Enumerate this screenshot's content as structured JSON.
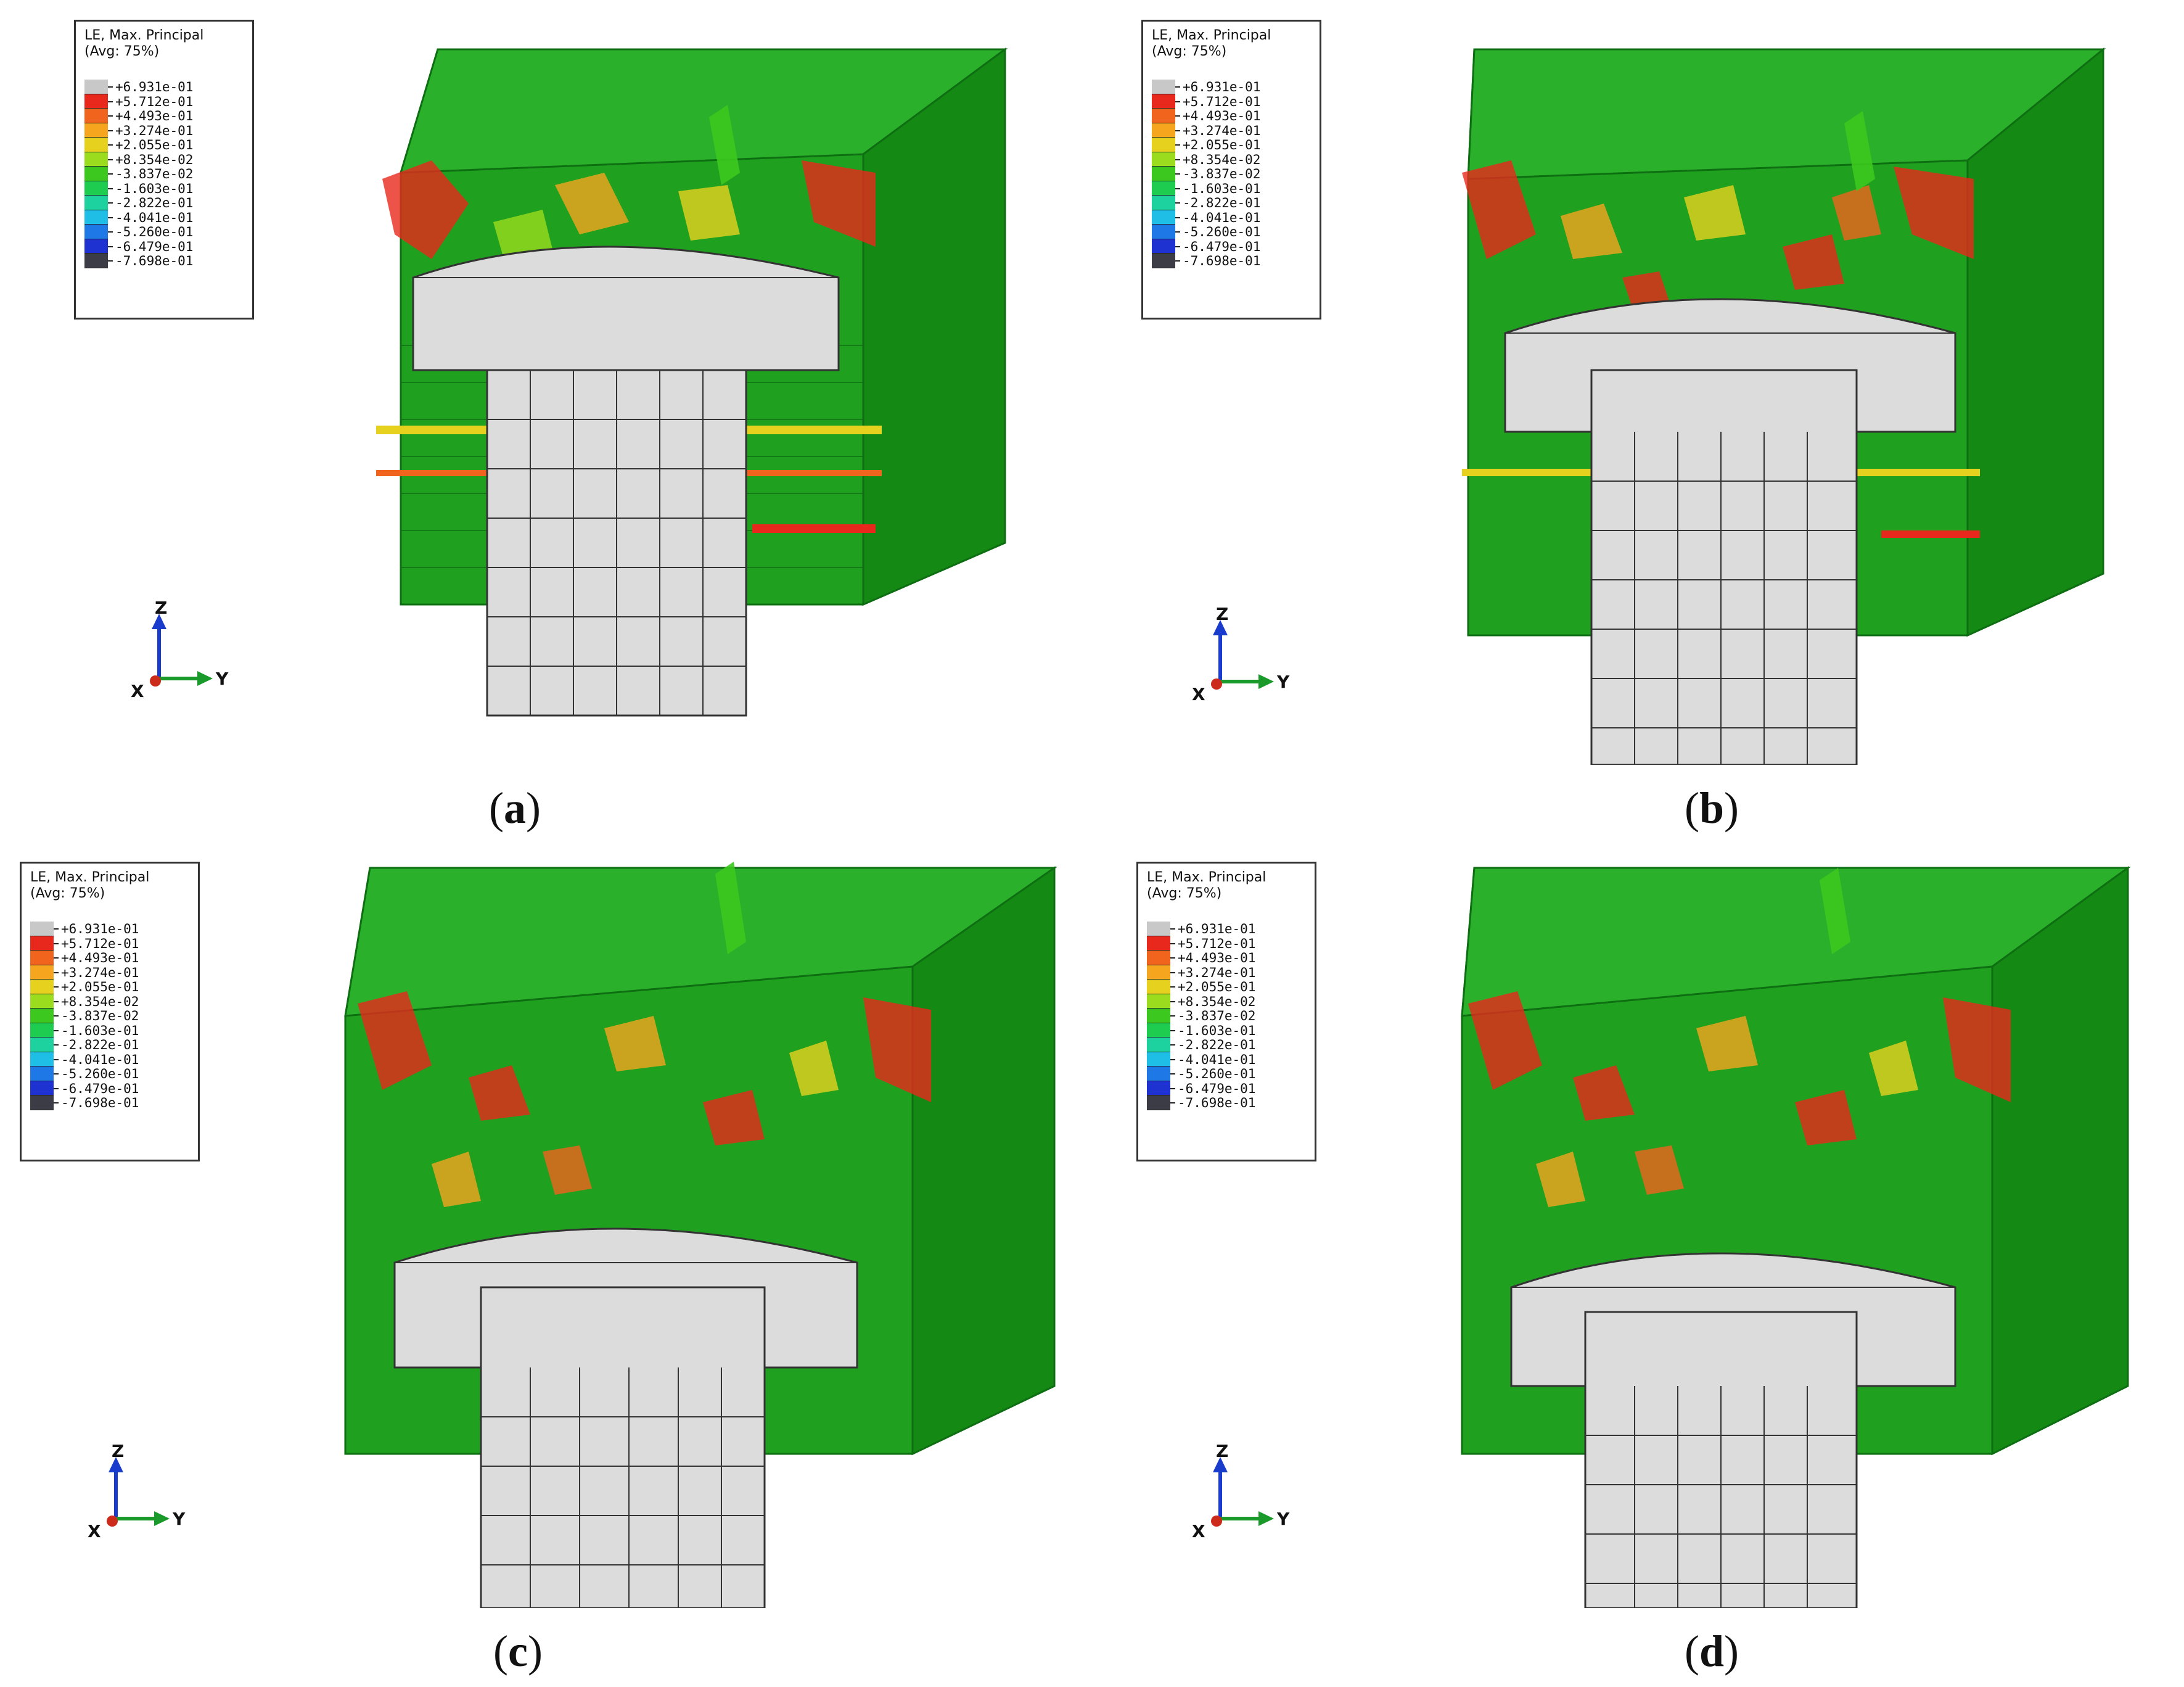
{
  "legend": {
    "title": "LE, Max. Principal",
    "avg": "(Avg: 75%)",
    "levels": [
      {
        "value": "+6.931e-01",
        "color": "#c8c8c8"
      },
      {
        "value": "+5.712e-01",
        "color": "#e8281c"
      },
      {
        "value": "+4.493e-01",
        "color": "#f0641e"
      },
      {
        "value": "+3.274e-01",
        "color": "#f5a51e"
      },
      {
        "value": "+2.055e-01",
        "color": "#e6d21e"
      },
      {
        "value": "+8.354e-02",
        "color": "#9bdc1e"
      },
      {
        "value": "-3.837e-02",
        "color": "#3cc81e"
      },
      {
        "value": "-1.603e-01",
        "color": "#1ecd50"
      },
      {
        "value": "-2.822e-01",
        "color": "#1ed2a0"
      },
      {
        "value": "-4.041e-01",
        "color": "#1ebee6"
      },
      {
        "value": "-5.260e-01",
        "color": "#1e78e6"
      },
      {
        "value": "-6.479e-01",
        "color": "#1e32d2"
      },
      {
        "value": "-7.698e-01",
        "color": "#3c3c46"
      }
    ]
  },
  "triad": {
    "z": "Z",
    "x": "X",
    "y": "Y"
  },
  "captions": {
    "a": "a",
    "b": "b",
    "c": "c",
    "d": "d"
  },
  "colors": {
    "mesh_green": "#1fa11f",
    "mesh_dark": "#0e6e12",
    "rivet_gray": "#dcdcdc",
    "high": "#e8281c",
    "mid": "#f5a51e",
    "low": "#e6d21e"
  }
}
